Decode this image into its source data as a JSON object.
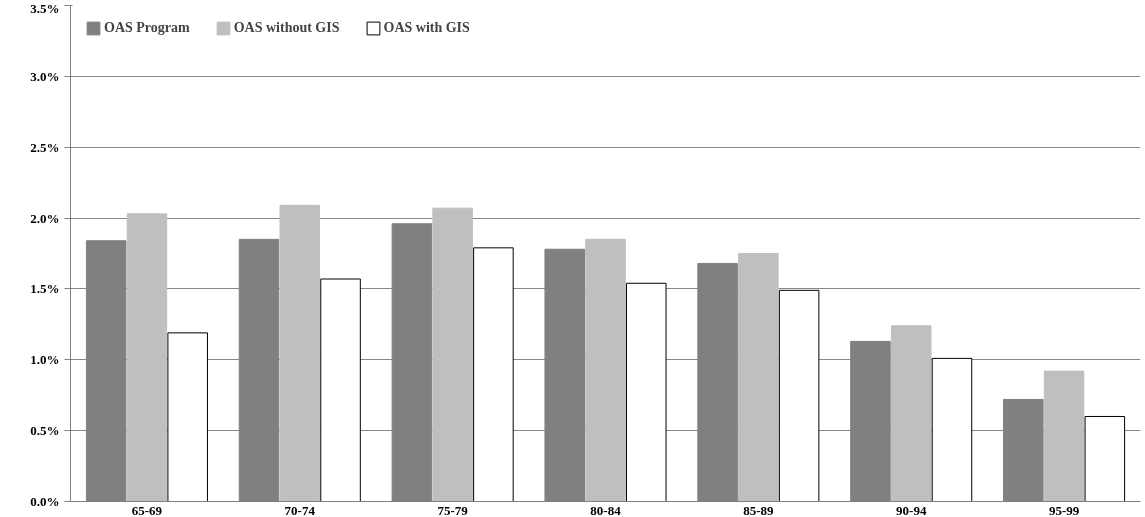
{
  "chart_data": {
    "type": "bar",
    "categories": [
      "65-69",
      "70-74",
      "75-79",
      "80-84",
      "85-89",
      "90-94",
      "95-99"
    ],
    "series": [
      {
        "name": "OAS Program",
        "color": "#808080",
        "values": [
          1.84,
          1.85,
          1.96,
          1.78,
          1.68,
          1.13,
          0.72
        ]
      },
      {
        "name": "OAS without GIS",
        "color": "#bfbfbf",
        "values": [
          2.03,
          2.09,
          2.07,
          1.85,
          1.75,
          1.24,
          0.92
        ]
      },
      {
        "name": "OAS with GIS",
        "color": "#ffffff",
        "values": [
          1.19,
          1.57,
          1.79,
          1.54,
          1.49,
          1.01,
          0.6
        ]
      }
    ],
    "ylim": [
      0,
      3.5
    ],
    "yticks": [
      {
        "value": 0,
        "label": "0.0%"
      },
      {
        "value": 0.5,
        "label": "0.5%"
      },
      {
        "value": 1,
        "label": "1.0%"
      },
      {
        "value": 1.5,
        "label": "1.5%"
      },
      {
        "value": 2,
        "label": "2.0%"
      },
      {
        "value": 2.5,
        "label": "2.5%"
      },
      {
        "value": 3,
        "label": "3.0%"
      },
      {
        "value": 3.5,
        "label": "3.5%"
      }
    ],
    "grid": "y",
    "legend": "top left"
  }
}
